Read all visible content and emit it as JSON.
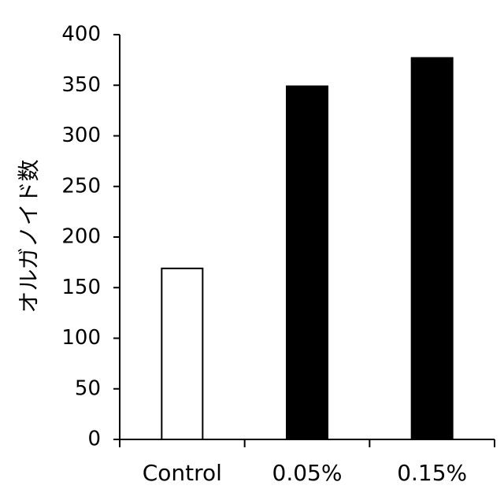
{
  "chart_data": {
    "type": "bar",
    "categories": [
      "Control",
      "0.05%",
      "0.15%"
    ],
    "values": [
      169,
      349,
      377
    ],
    "bar_colors": [
      "#ffffff",
      "#000000",
      "#000000"
    ],
    "title": "",
    "xlabel": "",
    "ylabel": "オルガノイド数",
    "ylim": [
      0,
      400
    ],
    "yticks": [
      0,
      50,
      100,
      150,
      200,
      250,
      300,
      350,
      400
    ],
    "grid": false,
    "legend": "none"
  }
}
